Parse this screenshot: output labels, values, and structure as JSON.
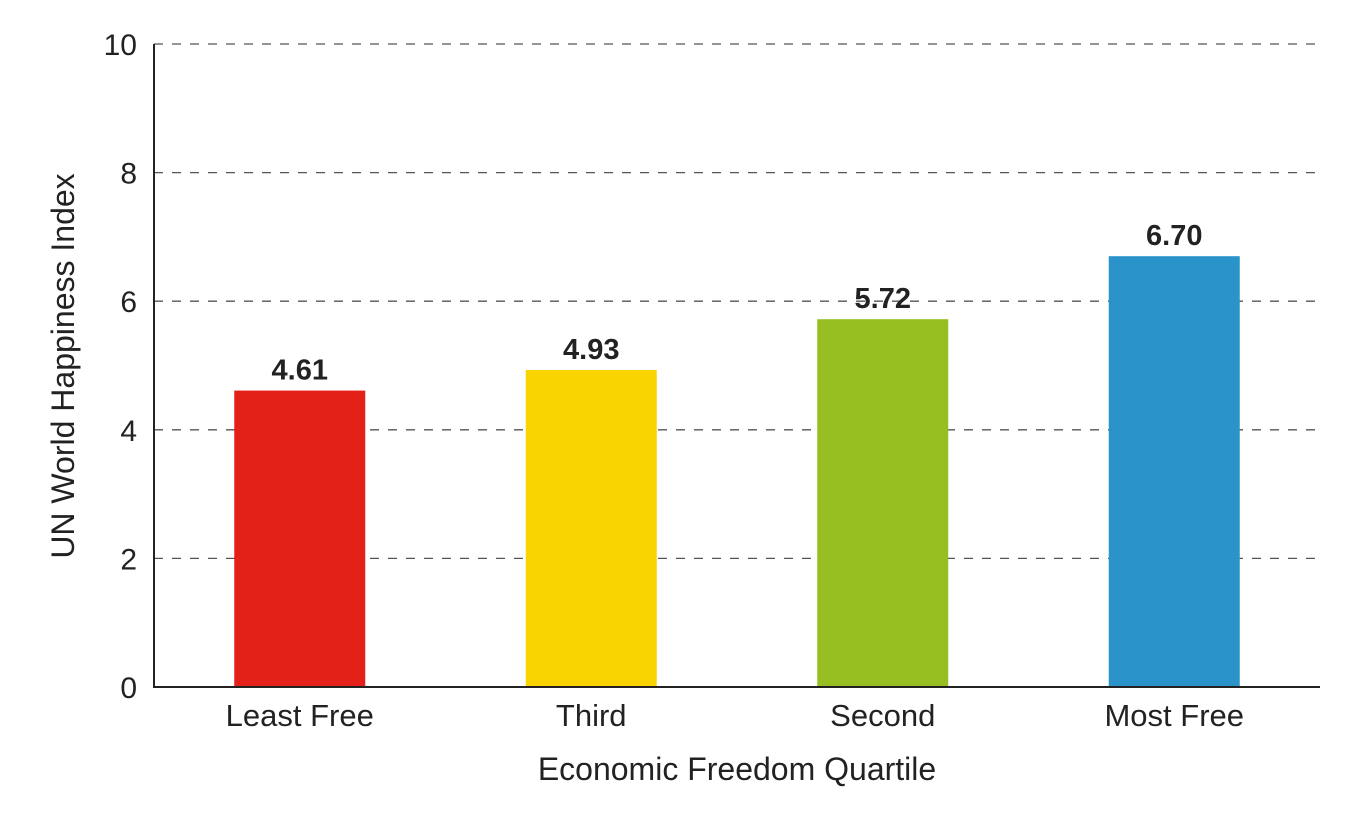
{
  "chart_data": {
    "type": "bar",
    "categories": [
      "Least Free",
      "Third",
      "Second",
      "Most Free"
    ],
    "values": [
      4.61,
      4.93,
      5.72,
      6.7
    ],
    "value_labels": [
      "4.61",
      "4.93",
      "5.72",
      "6.70"
    ],
    "colors": [
      "#e32119",
      "#fad400",
      "#98bf21",
      "#2a93c9"
    ],
    "title": "",
    "xlabel": "Economic Freedom Quartile",
    "ylabel": "UN World Happiness Index",
    "ylim": [
      0,
      10
    ],
    "yticks": [
      0,
      2,
      4,
      6,
      8,
      10
    ],
    "ytick_labels": [
      "0",
      "2",
      "4",
      "6",
      "8",
      "10"
    ],
    "grid": true,
    "grid_style": "dashed",
    "legend": "none"
  }
}
